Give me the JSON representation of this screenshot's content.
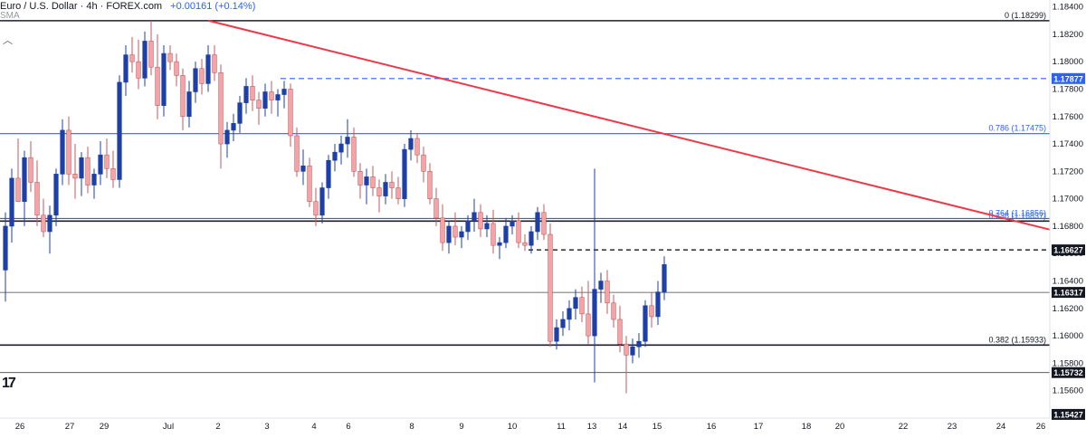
{
  "header": {
    "title": "Euro / U.S. Dollar · 4h · FOREX.com",
    "change": "+0.00161 (+0.14%)",
    "indicator": "SMA",
    "collapse_icon": "chevron-up-icon",
    "logo_text": "17"
  },
  "colors": {
    "background": "#ffffff",
    "bull": "#1c3fa8",
    "bear": "#f4a4a7",
    "bear_outline": "#c45a5e",
    "trendline": "#f23645",
    "level": "#1e1e2e",
    "fib": "#2962ff",
    "axis_text": "#131722"
  },
  "chart_data": {
    "type": "candlestick",
    "symbol": "EURUSD",
    "timeframe": "4h",
    "ylim": [
      1.154,
      1.1845
    ],
    "y_ticks": [
      1.184,
      1.182,
      1.18,
      1.178,
      1.176,
      1.174,
      1.172,
      1.17,
      1.168,
      1.166,
      1.164,
      1.162,
      1.16,
      1.158,
      1.156
    ],
    "x_labels": [
      "26",
      "27",
      "29",
      "Jul",
      "2",
      "3",
      "4",
      "6",
      "8",
      "9",
      "10",
      "11",
      "13",
      "14",
      "15",
      "16",
      "17",
      "18",
      "20",
      "22",
      "23",
      "24",
      "26"
    ],
    "price_tags": [
      {
        "label": "1.17877",
        "dark": false
      },
      {
        "label": "1.16627",
        "dark": true
      },
      {
        "label": "1.16317",
        "dark": true
      },
      {
        "label": "1.15732",
        "dark": true
      },
      {
        "label": "1.15427",
        "dark": true
      }
    ],
    "levels": [
      {
        "price": 1.18299,
        "style": "solid-dark"
      },
      {
        "price": 1.17877,
        "style": "dashed-blue"
      },
      {
        "price": 1.17475,
        "style": "solid-blue"
      },
      {
        "price": 1.16856,
        "style": "solid-blue"
      },
      {
        "price": 1.16837,
        "style": "solid-dark"
      },
      {
        "price": 1.16627,
        "style": "dashed-dark"
      },
      {
        "price": 1.16317,
        "style": "solid-thin"
      },
      {
        "price": 1.15933,
        "style": "solid-dark"
      },
      {
        "price": 1.15732,
        "style": "solid-thin"
      }
    ],
    "fib_labels": [
      {
        "text": "0 (1.18299)",
        "price": 1.18299
      },
      {
        "text": "0.786 (1.17475)",
        "price": 1.17475
      },
      {
        "text": "0.764 (1.16856)",
        "price": 1.16856
      },
      {
        "text": "0.236 (1.16837)",
        "price": 1.16837
      },
      {
        "text": "0.382 (1.15933)",
        "price": 1.15933
      }
    ],
    "trendline": {
      "from": {
        "bar": 32,
        "price": 1.183
      },
      "to": {
        "bar": 208,
        "price": 1.1628
      }
    },
    "candles": [
      [
        1.1648,
        1.169,
        1.1625,
        1.168
      ],
      [
        1.168,
        1.1722,
        1.1668,
        1.1715
      ],
      [
        1.1715,
        1.1744,
        1.17,
        1.1698
      ],
      [
        1.1698,
        1.1735,
        1.168,
        1.173
      ],
      [
        1.173,
        1.1742,
        1.1705,
        1.1712
      ],
      [
        1.1712,
        1.1728,
        1.168,
        1.1688
      ],
      [
        1.1688,
        1.17,
        1.1672,
        1.1676
      ],
      [
        1.1676,
        1.1695,
        1.166,
        1.1688
      ],
      [
        1.1688,
        1.1722,
        1.168,
        1.1718
      ],
      [
        1.1718,
        1.1758,
        1.171,
        1.175
      ],
      [
        1.175,
        1.176,
        1.171,
        1.1718
      ],
      [
        1.1718,
        1.174,
        1.17,
        1.1715
      ],
      [
        1.1715,
        1.1734,
        1.1702,
        1.173
      ],
      [
        1.173,
        1.1738,
        1.1704,
        1.171
      ],
      [
        1.171,
        1.1722,
        1.17,
        1.1718
      ],
      [
        1.1718,
        1.1742,
        1.171,
        1.1732
      ],
      [
        1.1732,
        1.1744,
        1.1715,
        1.1722
      ],
      [
        1.1722,
        1.1735,
        1.1708,
        1.1714
      ],
      [
        1.1714,
        1.179,
        1.1708,
        1.1785
      ],
      [
        1.1785,
        1.1812,
        1.1775,
        1.1805
      ],
      [
        1.1805,
        1.1818,
        1.1792,
        1.18
      ],
      [
        1.18,
        1.1816,
        1.178,
        1.1788
      ],
      [
        1.1788,
        1.1822,
        1.1782,
        1.1815
      ],
      [
        1.1815,
        1.183,
        1.179,
        1.1796
      ],
      [
        1.1796,
        1.182,
        1.1758,
        1.1768
      ],
      [
        1.1768,
        1.1812,
        1.176,
        1.1806
      ],
      [
        1.1806,
        1.1812,
        1.1794,
        1.18
      ],
      [
        1.18,
        1.1806,
        1.1782,
        1.179
      ],
      [
        1.179,
        1.1795,
        1.175,
        1.176
      ],
      [
        1.176,
        1.1786,
        1.1752,
        1.1778
      ],
      [
        1.1778,
        1.18,
        1.177,
        1.1795
      ],
      [
        1.1795,
        1.1802,
        1.1776,
        1.1784
      ],
      [
        1.1784,
        1.1812,
        1.1778,
        1.1805
      ],
      [
        1.1805,
        1.1812,
        1.1786,
        1.1792
      ],
      [
        1.1792,
        1.1798,
        1.1722,
        1.174
      ],
      [
        1.174,
        1.1756,
        1.173,
        1.175
      ],
      [
        1.175,
        1.1762,
        1.1742,
        1.1755
      ],
      [
        1.1755,
        1.1775,
        1.1748,
        1.177
      ],
      [
        1.177,
        1.1788,
        1.1762,
        1.1782
      ],
      [
        1.1782,
        1.179,
        1.1764,
        1.1772
      ],
      [
        1.1772,
        1.1778,
        1.1754,
        1.1766
      ],
      [
        1.1766,
        1.1784,
        1.176,
        1.1778
      ],
      [
        1.1778,
        1.1786,
        1.1762,
        1.1772
      ],
      [
        1.1772,
        1.178,
        1.176,
        1.1776
      ],
      [
        1.1776,
        1.1786,
        1.1766,
        1.178
      ],
      [
        1.178,
        1.1784,
        1.1738,
        1.1746
      ],
      [
        1.1746,
        1.1752,
        1.1716,
        1.172
      ],
      [
        1.172,
        1.1736,
        1.171,
        1.1724
      ],
      [
        1.1724,
        1.173,
        1.1694,
        1.1698
      ],
      [
        1.1698,
        1.1708,
        1.168,
        1.1688
      ],
      [
        1.1688,
        1.1712,
        1.1682,
        1.1708
      ],
      [
        1.1708,
        1.1732,
        1.17,
        1.1728
      ],
      [
        1.1728,
        1.174,
        1.172,
        1.1734
      ],
      [
        1.1734,
        1.1746,
        1.1725,
        1.174
      ],
      [
        1.174,
        1.1758,
        1.173,
        1.1745
      ],
      [
        1.1745,
        1.1752,
        1.1716,
        1.172
      ],
      [
        1.172,
        1.1726,
        1.17,
        1.171
      ],
      [
        1.171,
        1.1722,
        1.1696,
        1.1716
      ],
      [
        1.1716,
        1.1724,
        1.1702,
        1.1708
      ],
      [
        1.1708,
        1.1714,
        1.169,
        1.1702
      ],
      [
        1.1702,
        1.1718,
        1.1696,
        1.1712
      ],
      [
        1.1712,
        1.172,
        1.17,
        1.1708
      ],
      [
        1.1708,
        1.1716,
        1.1696,
        1.17
      ],
      [
        1.17,
        1.174,
        1.1694,
        1.1736
      ],
      [
        1.1736,
        1.175,
        1.1728,
        1.1744
      ],
      [
        1.1744,
        1.1748,
        1.1726,
        1.1732
      ],
      [
        1.1732,
        1.1738,
        1.1712,
        1.172
      ],
      [
        1.172,
        1.1726,
        1.1696,
        1.17
      ],
      [
        1.17,
        1.1708,
        1.168,
        1.1686
      ],
      [
        1.1686,
        1.1696,
        1.1662,
        1.1668
      ],
      [
        1.1668,
        1.1684,
        1.166,
        1.168
      ],
      [
        1.168,
        1.169,
        1.1666,
        1.1672
      ],
      [
        1.1672,
        1.168,
        1.1664,
        1.1676
      ],
      [
        1.1676,
        1.1688,
        1.167,
        1.1684
      ],
      [
        1.1684,
        1.17,
        1.1676,
        1.169
      ],
      [
        1.169,
        1.1696,
        1.1672,
        1.1678
      ],
      [
        1.1678,
        1.1688,
        1.1672,
        1.1682
      ],
      [
        1.1682,
        1.1692,
        1.166,
        1.1666
      ],
      [
        1.1666,
        1.1672,
        1.1656,
        1.1668
      ],
      [
        1.1668,
        1.1686,
        1.1664,
        1.168
      ],
      [
        1.168,
        1.1688,
        1.1674,
        1.1684
      ],
      [
        1.1684,
        1.169,
        1.1664,
        1.1668
      ],
      [
        1.1668,
        1.1674,
        1.1662,
        1.1666
      ],
      [
        1.1666,
        1.168,
        1.166,
        1.1676
      ],
      [
        1.1676,
        1.1694,
        1.167,
        1.169
      ],
      [
        1.169,
        1.1696,
        1.167,
        1.1674
      ],
      [
        1.1674,
        1.1682,
        1.1592,
        1.1596
      ],
      [
        1.1596,
        1.1612,
        1.159,
        1.1606
      ],
      [
        1.1606,
        1.1618,
        1.16,
        1.1612
      ],
      [
        1.1612,
        1.1626,
        1.1604,
        1.162
      ],
      [
        1.162,
        1.1634,
        1.1612,
        1.1628
      ],
      [
        1.1628,
        1.1636,
        1.161,
        1.1616
      ],
      [
        1.1616,
        1.164,
        1.1594,
        1.16
      ],
      [
        1.16,
        1.1722,
        1.1566,
        1.1634
      ],
      [
        1.1634,
        1.1646,
        1.1624,
        1.164
      ],
      [
        1.164,
        1.1648,
        1.1616,
        1.1624
      ],
      [
        1.1624,
        1.163,
        1.1606,
        1.1612
      ],
      [
        1.1612,
        1.1622,
        1.1588,
        1.1594
      ],
      [
        1.1594,
        1.16,
        1.1558,
        1.1586
      ],
      [
        1.1586,
        1.1598,
        1.158,
        1.1592
      ],
      [
        1.1592,
        1.1602,
        1.1584,
        1.1596
      ],
      [
        1.1596,
        1.1626,
        1.1592,
        1.1622
      ],
      [
        1.1622,
        1.1632,
        1.1606,
        1.1614
      ],
      [
        1.1614,
        1.164,
        1.1608,
        1.1632
      ],
      [
        1.1632,
        1.1658,
        1.1626,
        1.1652
      ]
    ]
  }
}
